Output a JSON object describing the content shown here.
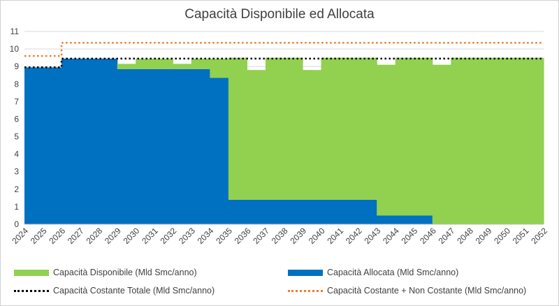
{
  "chart_data": {
    "type": "area",
    "title": "Capacità Disponibile ed Allocata",
    "xlabel": "",
    "ylabel": "",
    "ylim": [
      0,
      11
    ],
    "yticks": [
      0,
      1,
      2,
      3,
      4,
      5,
      6,
      7,
      8,
      9,
      10,
      11
    ],
    "grid": true,
    "legend_position": "bottom",
    "categories": [
      "2024",
      "2025",
      "2026",
      "2027",
      "2028",
      "2029",
      "2030",
      "2031",
      "2032",
      "2033",
      "2034",
      "2035",
      "2036",
      "2037",
      "2038",
      "2039",
      "2040",
      "2041",
      "2042",
      "2043",
      "2044",
      "2045",
      "2046",
      "2047",
      "2048",
      "2049",
      "2050",
      "2051",
      "2052"
    ],
    "series": [
      {
        "name": "Capacità Disponibile (Mld Smc/anno)",
        "kind": "stacked-area",
        "color": "#92d050",
        "values": [
          0,
          0,
          0,
          0,
          0,
          0.3,
          0.6,
          0.6,
          0.3,
          0.6,
          1.1,
          8.1,
          7.4,
          8.1,
          8.1,
          7.4,
          8.1,
          8.1,
          8.1,
          8.6,
          9.0,
          9.0,
          9.1,
          9.5,
          9.5,
          9.5,
          9.5,
          9.5,
          9.5
        ]
      },
      {
        "name": "Capacità Allocata (Mld Smc/anno)",
        "kind": "stacked-area",
        "color": "#0070c0",
        "values": [
          8.95,
          8.95,
          9.45,
          9.45,
          9.45,
          8.85,
          8.85,
          8.85,
          8.85,
          8.85,
          8.35,
          1.4,
          1.4,
          1.4,
          1.4,
          1.4,
          1.4,
          1.4,
          1.4,
          0.5,
          0.5,
          0.5,
          0,
          0,
          0,
          0,
          0,
          0,
          0
        ]
      },
      {
        "name": "Capacità Costante Totale (Mld Smc/anno)",
        "kind": "dotted-line",
        "color": "#000000",
        "values": [
          8.95,
          8.95,
          9.45,
          9.45,
          9.45,
          9.45,
          9.45,
          9.45,
          9.45,
          9.45,
          9.45,
          9.45,
          9.45,
          9.45,
          9.45,
          9.45,
          9.45,
          9.45,
          9.45,
          9.45,
          9.45,
          9.45,
          9.45,
          9.45,
          9.45,
          9.45,
          9.45,
          9.45,
          9.45
        ]
      },
      {
        "name": "Capacità Costante + Non Costante (Mld Smc/anno)",
        "kind": "dotted-line",
        "color": "#ed7d31",
        "values": [
          9.6,
          9.6,
          10.35,
          10.35,
          10.35,
          10.35,
          10.35,
          10.35,
          10.35,
          10.35,
          10.35,
          10.35,
          10.35,
          10.35,
          10.35,
          10.35,
          10.35,
          10.35,
          10.35,
          10.35,
          10.35,
          10.35,
          10.35,
          10.35,
          10.35,
          10.35,
          10.35,
          10.35,
          10.35
        ]
      }
    ]
  }
}
